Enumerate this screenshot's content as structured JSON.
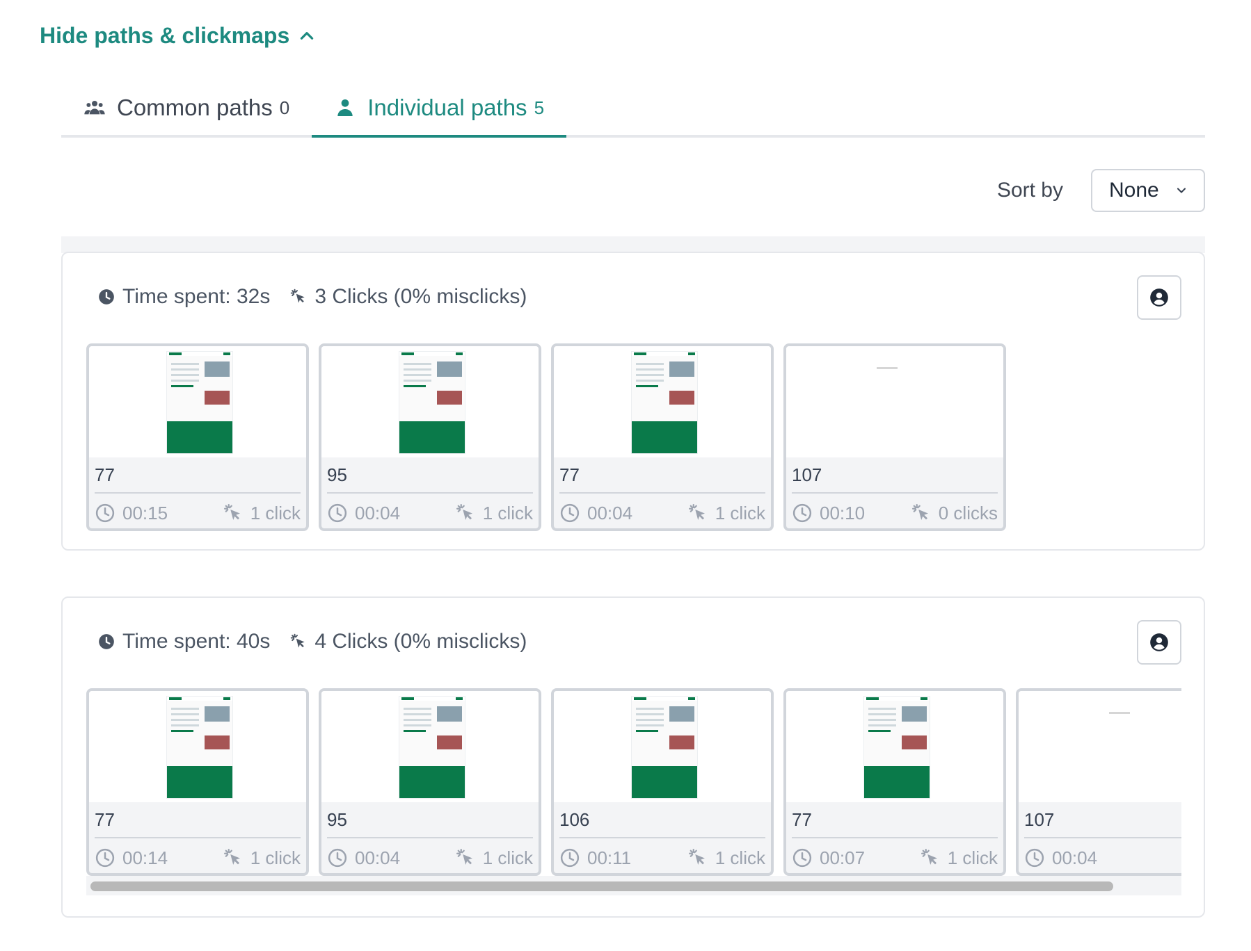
{
  "toggle": {
    "label": "Hide paths & clickmaps",
    "icon": "chevron-up-icon"
  },
  "tabs": [
    {
      "label": "Common paths",
      "count": "0",
      "icon": "users-icon",
      "active": false
    },
    {
      "label": "Individual paths",
      "count": "5",
      "icon": "user-icon",
      "active": true
    }
  ],
  "sort": {
    "label": "Sort by",
    "value": "None"
  },
  "colors": {
    "accent": "#1d8a80",
    "thumb_brand": "#0a7a4a"
  },
  "paths": [
    {
      "time_label": "Time spent: 32s",
      "clicks_label": "3 Clicks (0% misclicks)",
      "screens": [
        {
          "id": "77",
          "time": "00:15",
          "clicks": "1 click",
          "blank": false
        },
        {
          "id": "95",
          "time": "00:04",
          "clicks": "1 click",
          "blank": false
        },
        {
          "id": "77",
          "time": "00:04",
          "clicks": "1 click",
          "blank": false
        },
        {
          "id": "107",
          "time": "00:10",
          "clicks": "0 clicks",
          "blank": true
        }
      ]
    },
    {
      "time_label": "Time spent: 40s",
      "clicks_label": "4 Clicks (0% misclicks)",
      "screens": [
        {
          "id": "77",
          "time": "00:14",
          "clicks": "1 click",
          "blank": false
        },
        {
          "id": "95",
          "time": "00:04",
          "clicks": "1 click",
          "blank": false
        },
        {
          "id": "106",
          "time": "00:11",
          "clicks": "1 click",
          "blank": false
        },
        {
          "id": "77",
          "time": "00:07",
          "clicks": "1 click",
          "blank": false
        },
        {
          "id": "107",
          "time": "00:04",
          "clicks": "",
          "blank": true
        }
      ]
    }
  ]
}
